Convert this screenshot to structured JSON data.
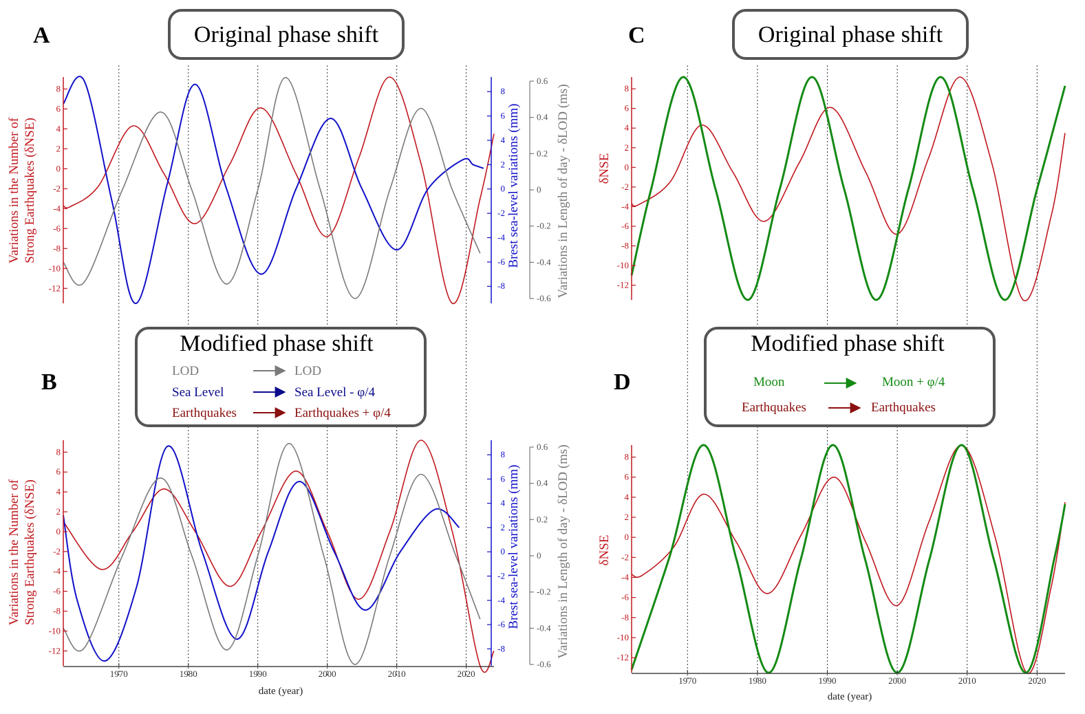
{
  "colors": {
    "eq": "#c0181e",
    "sea": "#1010c8",
    "lod": "#7a7a7a",
    "moon": "#148a14",
    "legend_sea": "#0b0b8c",
    "legend_eq": "#8b1010",
    "grid": "#333333"
  },
  "panels": {
    "A": {
      "letter": "A",
      "box_title": "Original phase shift"
    },
    "B": {
      "letter": "B",
      "box_title": "Modified phase shift"
    },
    "C": {
      "letter": "C",
      "box_title": "Original phase shift"
    },
    "D": {
      "letter": "D",
      "box_title": "Modified phase shift"
    }
  },
  "legend_B": {
    "rows": [
      {
        "from": "LOD",
        "to": "LOD",
        "color_key": "lod"
      },
      {
        "from": "Sea Level",
        "to": "Sea Level - φ/4",
        "color_key": "legend_sea"
      },
      {
        "from": "Earthquakes",
        "to": "Earthquakes + φ/4",
        "color_key": "legend_eq"
      }
    ]
  },
  "legend_D": {
    "rows": [
      {
        "from": "Moon",
        "to": "Moon  + φ/4",
        "color_key": "moon"
      },
      {
        "from": "Earthquakes",
        "to": "Earthquakes",
        "color_key": "legend_eq"
      }
    ]
  },
  "axes": {
    "eq_label_line1": "Variations in the Number of",
    "eq_label_line2": "Strong Earthquakes (δNSE)",
    "sea_label": "Brest sea-level variations (mm)",
    "lod_label": "Variations in Length of day - δLOD (ms)",
    "dnse_label": "δNSE",
    "xlabel": "date (year)"
  },
  "chart_data": [
    {
      "panel": "A",
      "type": "line",
      "xlim": [
        1962,
        2024
      ],
      "x_ticks": [
        1970,
        1980,
        1990,
        2000,
        2010,
        2020
      ],
      "grid": "vertical dotted lines at decades",
      "y_axes": [
        {
          "name": "δNSE",
          "ylim": [
            -13.5,
            9.2
          ],
          "ticks": [
            8,
            6,
            4,
            2,
            0,
            -2,
            -4,
            -6,
            -8,
            -10,
            -12
          ]
        },
        {
          "name": "Brest sea-level (mm)",
          "ylim": [
            -9.4,
            9.2
          ],
          "ticks": [
            8,
            6,
            4,
            2,
            0,
            -2,
            -4,
            -6,
            -8
          ]
        },
        {
          "name": "δLOD (ms)",
          "ylim": [
            -0.6,
            0.6
          ],
          "ticks": [
            0.6,
            0.4,
            0.2,
            0,
            -0.2,
            -0.4,
            -0.6
          ]
        }
      ],
      "series": [
        {
          "name": "Earthquakes",
          "color_key": "eq",
          "axis": 0,
          "x": [
            1962,
            1963,
            1967,
            1972,
            1976.5,
            1981,
            1986,
            1990.5,
            1995.5,
            2000,
            2004.5,
            2009,
            2013.5,
            2018,
            2022,
            2024
          ],
          "y": [
            -3.7,
            -3.8,
            -1.8,
            4.3,
            -0.5,
            -5.5,
            0.5,
            6.1,
            -0.5,
            -6.8,
            1.0,
            9.2,
            0.5,
            -13.5,
            -3.0,
            3.5
          ]
        },
        {
          "name": "Sea Level",
          "color_key": "sea",
          "axis": 1,
          "x": [
            1962,
            1965,
            1969,
            1972.5,
            1977,
            1981,
            1985.5,
            1990.5,
            1995.5,
            2000.5,
            2005,
            2010,
            2014.5,
            2019.5,
            2021,
            2022.5
          ],
          "y": [
            7.0,
            8.9,
            -1.0,
            -9.4,
            0.5,
            8.6,
            0.0,
            -7.0,
            0.0,
            5.8,
            0.0,
            -5.0,
            0.0,
            2.4,
            2.0,
            1.7
          ]
        },
        {
          "name": "LOD",
          "color_key": "lod",
          "axis": 2,
          "x": [
            1962,
            1965,
            1970.5,
            1976,
            1980.5,
            1985.5,
            1990,
            1994,
            1999,
            2004,
            2009,
            2013.5,
            2018,
            2022
          ],
          "y": [
            -0.4,
            -0.51,
            0.0,
            0.43,
            0.0,
            -0.52,
            0.0,
            0.62,
            0.0,
            -0.6,
            0.0,
            0.45,
            0.0,
            -0.35
          ]
        }
      ]
    },
    {
      "panel": "B",
      "type": "line",
      "xlim": [
        1962,
        2024
      ],
      "x_ticks": [
        1970,
        1980,
        1990,
        2000,
        2010,
        2020
      ],
      "xlabel": "date (year)",
      "grid": "vertical dotted lines at decades",
      "series": [
        {
          "name": "Earthquakes + φ/4",
          "color_key": "eq",
          "axis": 0,
          "x": [
            1962,
            1967.5,
            1972,
            1976.5,
            1981,
            1986,
            1990.5,
            1995.5,
            2000,
            2004.5,
            2009,
            2013.5,
            2018,
            2022,
            2024
          ],
          "y": [
            1.0,
            -3.8,
            0.0,
            4.3,
            0.0,
            -5.5,
            0.0,
            6.1,
            0.0,
            -6.8,
            0.0,
            9.2,
            0.0,
            -13.5,
            -12.0
          ]
        },
        {
          "name": "Sea Level - φ/4",
          "color_key": "sea",
          "axis": 1,
          "x": [
            1962,
            1964,
            1968,
            1972.5,
            1977,
            1982,
            1987,
            1991.5,
            1996,
            2001,
            2005.5,
            2010.5,
            2015.5,
            2019
          ],
          "y": [
            3.0,
            -4.0,
            -9.0,
            -3.0,
            8.7,
            0.0,
            -7.2,
            0.0,
            5.8,
            0.0,
            -4.8,
            0.0,
            3.5,
            2.0
          ]
        },
        {
          "name": "LOD",
          "color_key": "lod",
          "axis": 2,
          "x": [
            1962,
            1965,
            1970.5,
            1976,
            1980.5,
            1985.5,
            1990,
            1994.5,
            1999.5,
            2004,
            2009,
            2013.5,
            2018.5,
            2022
          ],
          "y": [
            -0.4,
            -0.51,
            0.0,
            0.43,
            0.0,
            -0.52,
            0.0,
            0.62,
            0.0,
            -0.6,
            0.0,
            0.45,
            0.0,
            -0.35
          ]
        }
      ]
    },
    {
      "panel": "C",
      "type": "line",
      "xlim": [
        1962,
        2024
      ],
      "x_ticks": [
        1970,
        1980,
        1990,
        2000,
        2010,
        2020
      ],
      "y_axes": [
        {
          "name": "δNSE",
          "ylim": [
            -13.5,
            9.2
          ],
          "ticks": [
            8,
            6,
            4,
            2,
            0,
            -2,
            -4,
            -6,
            -8,
            -10,
            -12
          ]
        }
      ],
      "series": [
        {
          "name": "Earthquakes",
          "color_key": "eq",
          "x": [
            1962,
            1963,
            1967.5,
            1972,
            1976.5,
            1981,
            1986,
            1990.5,
            1995.5,
            2000,
            2004.5,
            2009,
            2013.5,
            2018,
            2022,
            2024
          ],
          "y": [
            -3.7,
            -3.8,
            -1.5,
            4.3,
            -0.5,
            -5.5,
            0.5,
            6.1,
            -0.5,
            -6.8,
            1.0,
            9.2,
            0.5,
            -13.5,
            -5.0,
            3.5
          ]
        },
        {
          "name": "Moon",
          "color_key": "moon",
          "x": [
            1962,
            1964.8,
            1969.4,
            1974,
            1978.6,
            1983.2,
            1987.8,
            1992.4,
            1997,
            2001.6,
            2006.2,
            2010.8,
            2015.4,
            2020,
            2024
          ],
          "y": [
            -11.0,
            -2.2,
            9.2,
            -2.2,
            -13.5,
            -2.2,
            9.2,
            -2.2,
            -13.5,
            -2.2,
            9.2,
            -2.2,
            -13.5,
            -2.2,
            8.3
          ]
        }
      ]
    },
    {
      "panel": "D",
      "type": "line",
      "xlim": [
        1962,
        2024
      ],
      "x_ticks": [
        1970,
        1980,
        1990,
        2000,
        2010,
        2020
      ],
      "xlabel": "date (year)",
      "series": [
        {
          "name": "Earthquakes",
          "color_key": "eq",
          "x": [
            1962,
            1963.5,
            1968,
            1972.3,
            1977,
            1981.5,
            1986.3,
            1991,
            1995.5,
            2000,
            2004.5,
            2009.3,
            2014,
            2018.5,
            2022,
            2024
          ],
          "y": [
            -3.7,
            -3.8,
            -1.0,
            4.3,
            -0.5,
            -5.6,
            0.3,
            6.0,
            -0.5,
            -6.8,
            1.5,
            9.2,
            0.0,
            -13.5,
            -5.0,
            3.5
          ]
        },
        {
          "name": "Moon  + φ/4",
          "color_key": "moon",
          "x": [
            1962,
            1967.4,
            1972.3,
            1977,
            1981.6,
            1986.2,
            1990.8,
            1995.4,
            2000,
            2004.6,
            2009.2,
            2013.8,
            2018.4,
            2022.5,
            2024
          ],
          "y": [
            -13.2,
            -2.0,
            9.2,
            -2.2,
            -13.5,
            -2.2,
            9.2,
            -2.2,
            -13.5,
            -2.2,
            9.2,
            -2.2,
            -13.5,
            -2.0,
            3.3
          ]
        }
      ]
    }
  ]
}
